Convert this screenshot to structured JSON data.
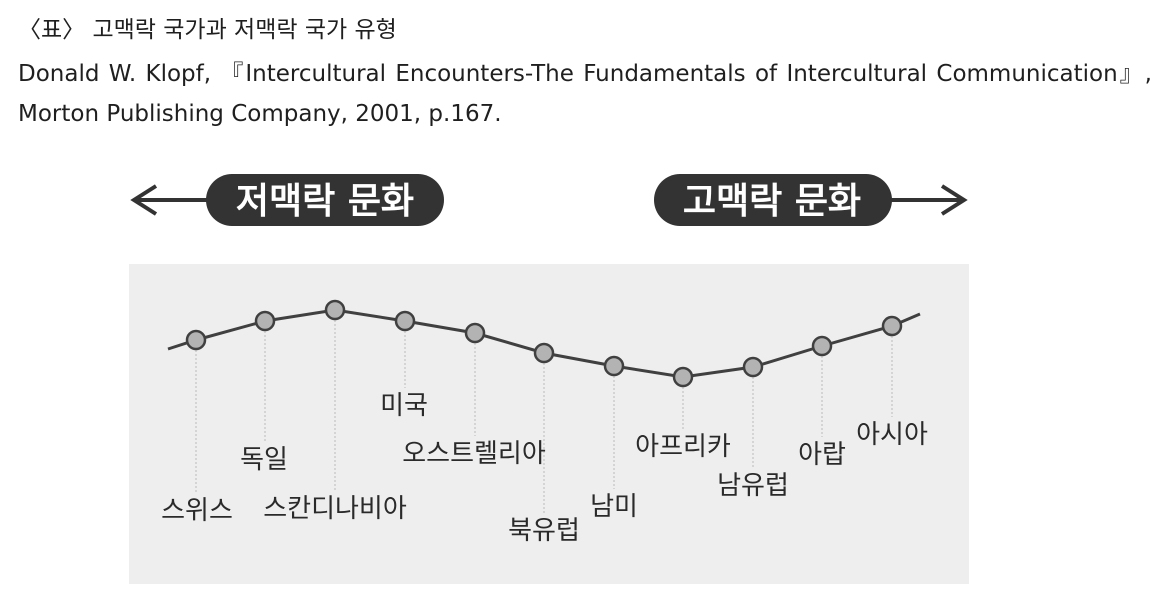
{
  "title": "〈표〉 고맥락 국가과 저맥락 국가 유형",
  "citation": {
    "author": "Donald W. Klopf,",
    "book": "『Intercultural Encounters-The Fundamentals of Intercultural Communication』,",
    "publisher": "Morton Publishing Company, 2001, p.167."
  },
  "scale": {
    "left_label": "저맥락 문화",
    "right_label": "고맥락 문화"
  },
  "countries": [
    "스위스",
    "독일",
    "스칸디나비아",
    "미국",
    "오스트렐리아",
    "북유럽",
    "남미",
    "아프리카",
    "남유럽",
    "아랍",
    "아시아"
  ],
  "colors": {
    "pill": "#333333",
    "panel": "#eeeeee",
    "curve": "#404040",
    "node_fill": "#b3b3b3"
  }
}
